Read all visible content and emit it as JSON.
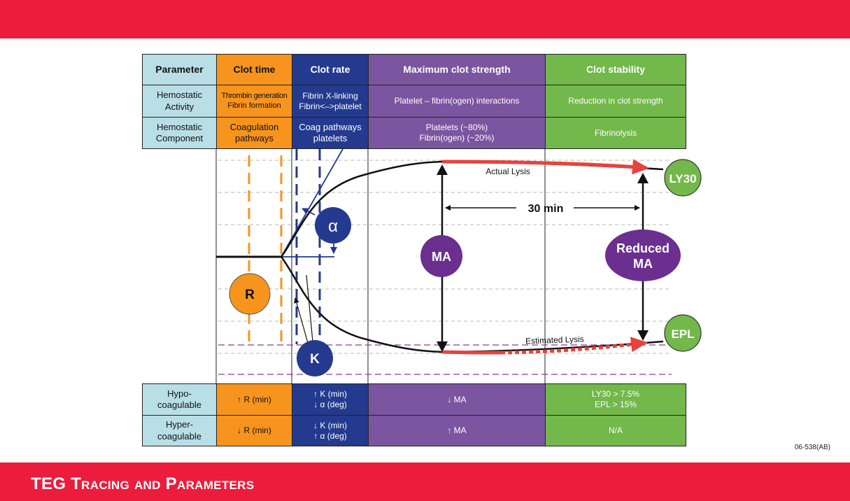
{
  "table_top": {
    "headers": [
      "Parameter",
      "Clot time",
      "Clot rate",
      "Maximum clot strength",
      "Clot stability"
    ],
    "row1": {
      "label_1": "Hemostatic",
      "label_2": "Activity",
      "clot_time_1": "Thrombin generation",
      "clot_time_2": "Fibrin formation",
      "clot_rate_1": "Fibrin X-linking",
      "clot_rate_2": "Fibrin<–>platelet",
      "strength": "Platelet – fibrin(ogen) interactions",
      "stability": "Reduction in clot strength"
    },
    "row2": {
      "label_1": "Hemostatic",
      "label_2": "Component",
      "clot_time_1": "Coagulation",
      "clot_time_2": "pathways",
      "clot_rate_1": "Coag pathways",
      "clot_rate_2": "platelets",
      "strength_1": "Platelets (~80%)",
      "strength_2": "Fibrin(ogen) (~20%)",
      "stability": "Fibrinolysis"
    }
  },
  "diagram": {
    "r_label": "R",
    "k_label": "K",
    "alpha_label": "α",
    "ma_label": "MA",
    "reduced_ma_1": "Reduced",
    "reduced_ma_2": "MA",
    "ly30_label": "LY30",
    "epl_label": "EPL",
    "actual_lysis": "Actual Lysis",
    "estimated_lysis": "Estimated Lysis",
    "thirty_min": "30 min",
    "colors": {
      "orange": "#f7941d",
      "navy": "#233a8e",
      "purple": "#6a2f8f",
      "green": "#72b84b",
      "red": "#e8423d",
      "lysis_purple": "#8b3a9c"
    }
  },
  "table_bottom": {
    "hypo": {
      "label_1": "Hypo-",
      "label_2": "coagulable",
      "clot_time": "↑ R (min)",
      "clot_rate_1": "↑ K (min)",
      "clot_rate_2": "↓ α (deg)",
      "strength": "↓ MA",
      "stability_1": "LY30 > 7.5%",
      "stability_2": "EPL > 15%"
    },
    "hyper": {
      "label_1": "Hyper-",
      "label_2": "coagulable",
      "clot_time": "↓ R (min)",
      "clot_rate_1": "↓ K (min)",
      "clot_rate_2": "↑ α (deg)",
      "strength": "↑ MA",
      "stability": "N/A"
    }
  },
  "footer": {
    "title": "TEG Tracing and Parameters",
    "code": "06-538(AB)"
  }
}
